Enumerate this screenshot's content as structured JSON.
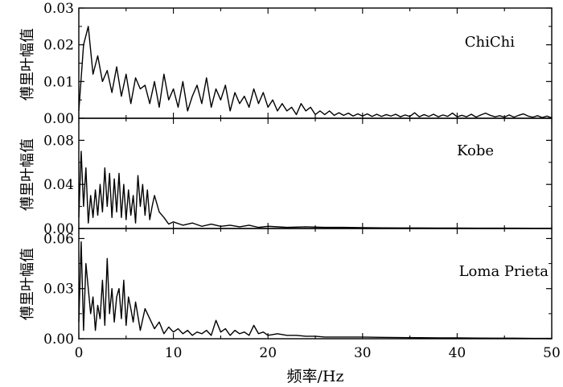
{
  "chart_data": {
    "type": "line",
    "xlabel": "频率/Hz",
    "xlim": [
      0,
      50
    ],
    "x_ticks": [
      "0",
      "10",
      "20",
      "30",
      "40",
      "50"
    ],
    "color": "#000000",
    "panels": [
      {
        "name": "ChiChi",
        "ylabel": "傅里叶幅值",
        "ylim": [
          0,
          0.03
        ],
        "y_ticks": [
          "0.00",
          "0.01",
          "0.02",
          "0.03"
        ],
        "x": [
          0,
          0.5,
          1,
          1.5,
          2,
          2.5,
          3,
          3.5,
          4,
          4.5,
          5,
          5.5,
          6,
          6.5,
          7,
          7.5,
          8,
          8.5,
          9,
          9.5,
          10,
          10.5,
          11,
          11.5,
          12,
          12.5,
          13,
          13.5,
          14,
          14.5,
          15,
          15.5,
          16,
          16.5,
          17,
          17.5,
          18,
          18.5,
          19,
          19.5,
          20,
          20.5,
          21,
          21.5,
          22,
          22.5,
          23,
          23.5,
          24,
          24.5,
          25,
          25.5,
          26,
          26.5,
          27,
          27.5,
          28,
          28.5,
          29,
          29.5,
          30,
          30.5,
          31,
          31.5,
          32,
          32.5,
          33,
          33.5,
          34,
          34.5,
          35,
          35.5,
          36,
          36.5,
          37,
          37.5,
          38,
          38.5,
          39,
          39.5,
          40,
          40.5,
          41,
          41.5,
          42,
          42.5,
          43,
          43.5,
          44,
          44.5,
          45,
          45.5,
          46,
          46.5,
          47,
          47.5,
          48,
          48.5,
          49,
          49.5,
          50
        ],
        "values": [
          0.002,
          0.02,
          0.025,
          0.012,
          0.017,
          0.01,
          0.013,
          0.007,
          0.014,
          0.006,
          0.012,
          0.004,
          0.011,
          0.008,
          0.009,
          0.004,
          0.01,
          0.003,
          0.012,
          0.005,
          0.008,
          0.003,
          0.01,
          0.002,
          0.006,
          0.009,
          0.004,
          0.011,
          0.003,
          0.008,
          0.005,
          0.009,
          0.002,
          0.007,
          0.004,
          0.006,
          0.003,
          0.008,
          0.004,
          0.007,
          0.003,
          0.005,
          0.002,
          0.004,
          0.002,
          0.003,
          0.001,
          0.004,
          0.002,
          0.003,
          0.001,
          0.002,
          0.001,
          0.002,
          0.0008,
          0.0015,
          0.0008,
          0.0014,
          0.0006,
          0.0012,
          0.0006,
          0.0012,
          0.0005,
          0.0011,
          0.0005,
          0.001,
          0.0006,
          0.0011,
          0.0004,
          0.0009,
          0.0005,
          0.0015,
          0.0004,
          0.001,
          0.0005,
          0.0011,
          0.0004,
          0.0009,
          0.0005,
          0.0014,
          0.0004,
          0.0008,
          0.0004,
          0.0011,
          0.0003,
          0.0009,
          0.0014,
          0.0008,
          0.0004,
          0.0007,
          0.0003,
          0.0009,
          0.0003,
          0.0008,
          0.0012,
          0.0006,
          0.0003,
          0.0007,
          0.0002,
          0.0006,
          0.0001
        ]
      },
      {
        "name": "Kobe",
        "ylabel": "傅里叶幅值",
        "ylim": [
          0,
          0.1
        ],
        "y_ticks": [
          "0.00",
          "0.04",
          "0.08"
        ],
        "x": [
          0,
          0.25,
          0.5,
          0.75,
          1,
          1.25,
          1.5,
          1.75,
          2,
          2.25,
          2.5,
          2.75,
          3,
          3.25,
          3.5,
          3.75,
          4,
          4.25,
          4.5,
          4.75,
          5,
          5.25,
          5.5,
          5.75,
          6,
          6.25,
          6.5,
          6.75,
          7,
          7.25,
          7.5,
          7.75,
          8,
          8.5,
          9,
          9.5,
          10,
          11,
          12,
          13,
          14,
          15,
          16,
          17,
          18,
          19,
          20,
          22,
          24,
          26,
          28,
          30,
          32,
          34,
          36,
          38,
          40,
          42,
          44,
          46,
          48,
          50
        ],
        "values": [
          0.01,
          0.07,
          0.02,
          0.055,
          0.005,
          0.03,
          0.01,
          0.035,
          0.012,
          0.04,
          0.015,
          0.055,
          0.02,
          0.05,
          0.01,
          0.045,
          0.015,
          0.05,
          0.01,
          0.04,
          0.008,
          0.035,
          0.012,
          0.03,
          0.005,
          0.048,
          0.02,
          0.04,
          0.012,
          0.035,
          0.008,
          0.02,
          0.03,
          0.015,
          0.01,
          0.004,
          0.006,
          0.003,
          0.005,
          0.002,
          0.004,
          0.002,
          0.003,
          0.0015,
          0.003,
          0.001,
          0.002,
          0.001,
          0.0015,
          0.001,
          0.001,
          0.0008,
          0.0006,
          0.0005,
          0.0005,
          0.0004,
          0.0004,
          0.0003,
          0.0003,
          0.0003,
          0.0002,
          0.0002
        ]
      },
      {
        "name": "Loma Prieta",
        "ylabel": "傅里叶幅值",
        "ylim": [
          0,
          0.066
        ],
        "y_ticks": [
          "0.00",
          "0.03",
          "0.06"
        ],
        "x": [
          0,
          0.25,
          0.5,
          0.75,
          1,
          1.25,
          1.5,
          1.75,
          2,
          2.25,
          2.5,
          2.75,
          3,
          3.25,
          3.5,
          3.75,
          4,
          4.25,
          4.5,
          4.75,
          5,
          5.25,
          5.5,
          5.75,
          6,
          6.5,
          7,
          7.5,
          8,
          8.5,
          9,
          9.5,
          10,
          10.5,
          11,
          11.5,
          12,
          12.5,
          13,
          13.5,
          14,
          14.5,
          15,
          15.5,
          16,
          16.5,
          17,
          17.5,
          18,
          18.5,
          19,
          19.5,
          20,
          21,
          22,
          23,
          24,
          25,
          26,
          28,
          30,
          32,
          34,
          36,
          38,
          40,
          42,
          44,
          46,
          48,
          50
        ],
        "values": [
          0.01,
          0.058,
          0.005,
          0.045,
          0.03,
          0.015,
          0.025,
          0.005,
          0.02,
          0.012,
          0.035,
          0.008,
          0.048,
          0.015,
          0.03,
          0.01,
          0.025,
          0.03,
          0.012,
          0.035,
          0.008,
          0.025,
          0.018,
          0.01,
          0.022,
          0.005,
          0.018,
          0.012,
          0.006,
          0.01,
          0.003,
          0.007,
          0.004,
          0.006,
          0.003,
          0.005,
          0.002,
          0.004,
          0.003,
          0.005,
          0.002,
          0.011,
          0.004,
          0.006,
          0.002,
          0.005,
          0.003,
          0.004,
          0.002,
          0.008,
          0.003,
          0.004,
          0.002,
          0.003,
          0.002,
          0.002,
          0.0015,
          0.0015,
          0.001,
          0.001,
          0.001,
          0.0008,
          0.0007,
          0.0006,
          0.0005,
          0.0005,
          0.0004,
          0.0003,
          0.0003,
          0.0002,
          0.0002
        ]
      }
    ]
  }
}
